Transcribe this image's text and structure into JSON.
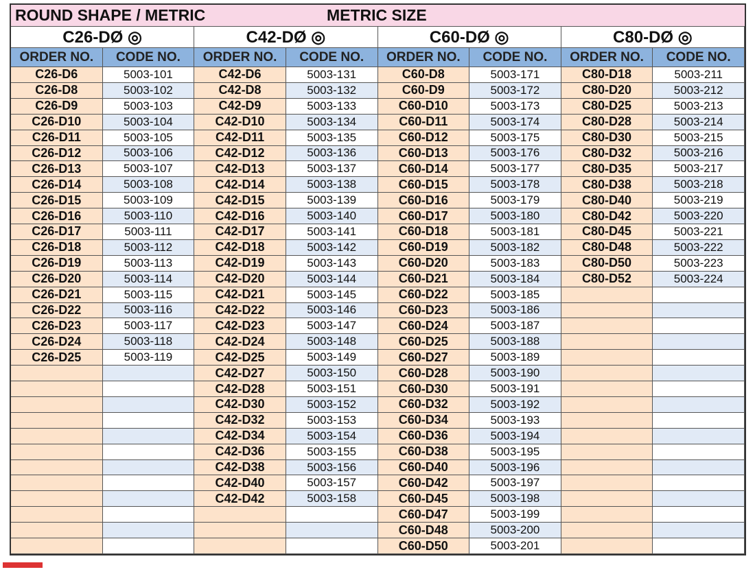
{
  "title": {
    "left": "ROUND SHAPE / METRIC",
    "right": "METRIC SIZE"
  },
  "groups": [
    {
      "title": "C26-DØ ◎",
      "headers": [
        "ORDER NO.",
        "CODE NO."
      ],
      "rows": [
        [
          "C26-D6",
          "5003-101"
        ],
        [
          "C26-D8",
          "5003-102"
        ],
        [
          "C26-D9",
          "5003-103"
        ],
        [
          "C26-D10",
          "5003-104"
        ],
        [
          "C26-D11",
          "5003-105"
        ],
        [
          "C26-D12",
          "5003-106"
        ],
        [
          "C26-D13",
          "5003-107"
        ],
        [
          "C26-D14",
          "5003-108"
        ],
        [
          "C26-D15",
          "5003-109"
        ],
        [
          "C26-D16",
          "5003-110"
        ],
        [
          "C26-D17",
          "5003-111"
        ],
        [
          "C26-D18",
          "5003-112"
        ],
        [
          "C26-D19",
          "5003-113"
        ],
        [
          "C26-D20",
          "5003-114"
        ],
        [
          "C26-D21",
          "5003-115"
        ],
        [
          "C26-D22",
          "5003-116"
        ],
        [
          "C26-D23",
          "5003-117"
        ],
        [
          "C26-D24",
          "5003-118"
        ],
        [
          "C26-D25",
          "5003-119"
        ]
      ]
    },
    {
      "title": "C42-DØ ◎",
      "headers": [
        "ORDER NO.",
        "CODE NO."
      ],
      "rows": [
        [
          "C42-D6",
          "5003-131"
        ],
        [
          "C42-D8",
          "5003-132"
        ],
        [
          "C42-D9",
          "5003-133"
        ],
        [
          "C42-D10",
          "5003-134"
        ],
        [
          "C42-D11",
          "5003-135"
        ],
        [
          "C42-D12",
          "5003-136"
        ],
        [
          "C42-D13",
          "5003-137"
        ],
        [
          "C42-D14",
          "5003-138"
        ],
        [
          "C42-D15",
          "5003-139"
        ],
        [
          "C42-D16",
          "5003-140"
        ],
        [
          "C42-D17",
          "5003-141"
        ],
        [
          "C42-D18",
          "5003-142"
        ],
        [
          "C42-D19",
          "5003-143"
        ],
        [
          "C42-D20",
          "5003-144"
        ],
        [
          "C42-D21",
          "5003-145"
        ],
        [
          "C42-D22",
          "5003-146"
        ],
        [
          "C42-D23",
          "5003-147"
        ],
        [
          "C42-D24",
          "5003-148"
        ],
        [
          "C42-D25",
          "5003-149"
        ],
        [
          "C42-D27",
          "5003-150"
        ],
        [
          "C42-D28",
          "5003-151"
        ],
        [
          "C42-D30",
          "5003-152"
        ],
        [
          "C42-D32",
          "5003-153"
        ],
        [
          "C42-D34",
          "5003-154"
        ],
        [
          "C42-D36",
          "5003-155"
        ],
        [
          "C42-D38",
          "5003-156"
        ],
        [
          "C42-D40",
          "5003-157"
        ],
        [
          "C42-D42",
          "5003-158"
        ]
      ]
    },
    {
      "title": "C60-DØ ◎",
      "headers": [
        "ORDER NO.",
        "CODE NO."
      ],
      "rows": [
        [
          "C60-D8",
          "5003-171"
        ],
        [
          "C60-D9",
          "5003-172"
        ],
        [
          "C60-D10",
          "5003-173"
        ],
        [
          "C60-D11",
          "5003-174"
        ],
        [
          "C60-D12",
          "5003-175"
        ],
        [
          "C60-D13",
          "5003-176"
        ],
        [
          "C60-D14",
          "5003-177"
        ],
        [
          "C60-D15",
          "5003-178"
        ],
        [
          "C60-D16",
          "5003-179"
        ],
        [
          "C60-D17",
          "5003-180"
        ],
        [
          "C60-D18",
          "5003-181"
        ],
        [
          "C60-D19",
          "5003-182"
        ],
        [
          "C60-D20",
          "5003-183"
        ],
        [
          "C60-D21",
          "5003-184"
        ],
        [
          "C60-D22",
          "5003-185"
        ],
        [
          "C60-D23",
          "5003-186"
        ],
        [
          "C60-D24",
          "5003-187"
        ],
        [
          "C60-D25",
          "5003-188"
        ],
        [
          "C60-D27",
          "5003-189"
        ],
        [
          "C60-D28",
          "5003-190"
        ],
        [
          "C60-D30",
          "5003-191"
        ],
        [
          "C60-D32",
          "5003-192"
        ],
        [
          "C60-D34",
          "5003-193"
        ],
        [
          "C60-D36",
          "5003-194"
        ],
        [
          "C60-D38",
          "5003-195"
        ],
        [
          "C60-D40",
          "5003-196"
        ],
        [
          "C60-D42",
          "5003-197"
        ],
        [
          "C60-D45",
          "5003-198"
        ],
        [
          "C60-D47",
          "5003-199"
        ],
        [
          "C60-D48",
          "5003-200"
        ],
        [
          "C60-D50",
          "5003-201"
        ]
      ]
    },
    {
      "title": "C80-DØ ◎",
      "headers": [
        "ORDER NO.",
        "CODE NO."
      ],
      "rows": [
        [
          "C80-D18",
          "5003-211"
        ],
        [
          "C80-D20",
          "5003-212"
        ],
        [
          "C80-D25",
          "5003-213"
        ],
        [
          "C80-D28",
          "5003-214"
        ],
        [
          "C80-D30",
          "5003-215"
        ],
        [
          "C80-D32",
          "5003-216"
        ],
        [
          "C80-D35",
          "5003-217"
        ],
        [
          "C80-D38",
          "5003-218"
        ],
        [
          "C80-D40",
          "5003-219"
        ],
        [
          "C80-D42",
          "5003-220"
        ],
        [
          "C80-D45",
          "5003-221"
        ],
        [
          "C80-D48",
          "5003-222"
        ],
        [
          "C80-D50",
          "5003-223"
        ],
        [
          "C80-D52",
          "5003-224"
        ]
      ]
    }
  ]
}
